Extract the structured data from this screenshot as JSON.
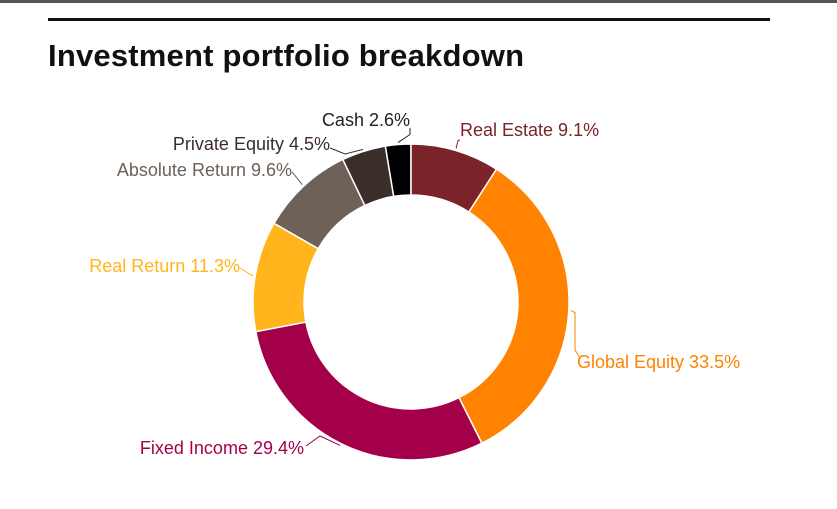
{
  "chart_data": {
    "type": "pie",
    "donut": true,
    "title": "Investment portfolio breakdown",
    "unit": "%",
    "slices": [
      {
        "name": "Cash",
        "value": 2.6,
        "label": "Cash 2.6%",
        "color": "#000000",
        "label_color": "#222222"
      },
      {
        "name": "Real Estate",
        "value": 9.1,
        "label": "Real Estate 9.1%",
        "color": "#7a2328",
        "label_color": "#7a2328"
      },
      {
        "name": "Global Equity",
        "value": 33.5,
        "label": "Global Equity 33.5%",
        "color": "#ff8200",
        "label_color": "#ff8200"
      },
      {
        "name": "Fixed Income",
        "value": 29.4,
        "label": "Fixed Income 29.4%",
        "color": "#a4004a",
        "label_color": "#a4004a"
      },
      {
        "name": "Real Return",
        "value": 11.3,
        "label": "Real Return 11.3%",
        "color": "#ffb51b",
        "label_color": "#ffb51b"
      },
      {
        "name": "Absolute Return",
        "value": 9.6,
        "label": "Absolute Return 9.6%",
        "color": "#6d6158",
        "label_color": "#6d6158"
      },
      {
        "name": "Private Equity",
        "value": 4.5,
        "label": "Private Equity 4.5%",
        "color": "#3b2d29",
        "label_color": "#3b2d29"
      }
    ]
  }
}
